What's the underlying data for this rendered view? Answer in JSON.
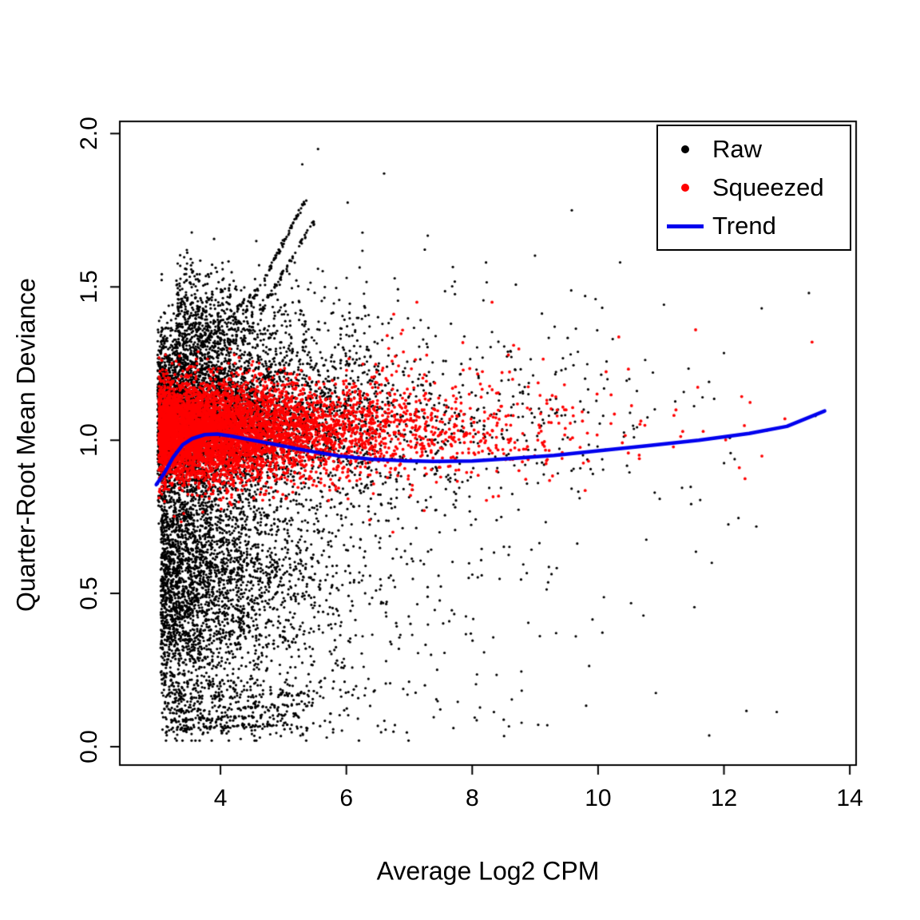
{
  "chart_data": {
    "type": "scatter",
    "title": "",
    "xlabel": "Average Log2 CPM",
    "ylabel": "Quarter-Root Mean Deviance",
    "xlim": [
      2.4,
      14.1
    ],
    "ylim": [
      -0.06,
      2.04
    ],
    "xticks": [
      "4",
      "6",
      "8",
      "10",
      "12",
      "14"
    ],
    "xtick_values": [
      4,
      6,
      8,
      10,
      12,
      14
    ],
    "yticks": [
      "0.0",
      "0.5",
      "1.0",
      "1.5",
      "2.0"
    ],
    "ytick_values": [
      0.0,
      0.5,
      1.0,
      1.5,
      2.0
    ],
    "grid": false,
    "box": true,
    "colors": {
      "raw": "#000000",
      "squeezed": "#FF0000",
      "trend": "#0000EE",
      "axis": "#000000",
      "background": "#FFFFFF"
    },
    "legend": {
      "position": "top-right",
      "entries": [
        {
          "label": "Raw",
          "color": "#000000",
          "type": "point"
        },
        {
          "label": "Squeezed",
          "color": "#FF0000",
          "type": "point"
        },
        {
          "label": "Trend",
          "color": "#0000EE",
          "type": "line"
        }
      ]
    },
    "points": {
      "seed": 42,
      "clusters": [
        {
          "series": "raw",
          "n": 5000,
          "x": {
            "type": "exp",
            "offset": 3.0,
            "mean": 1.25,
            "max": 13.65
          },
          "y": {
            "type": "normal",
            "mean": 1.08,
            "sd": 0.13,
            "min": 0.02,
            "max": 1.99
          }
        },
        {
          "series": "raw",
          "n": 3400,
          "x": {
            "type": "exp",
            "offset": 3.05,
            "mean": 1.0,
            "max": 13.0
          },
          "y": {
            "type": "normal",
            "mean": 0.55,
            "sd": 0.21,
            "min": 0.02,
            "max": 1.99
          }
        },
        {
          "series": "raw",
          "n": 700,
          "x": {
            "type": "exp",
            "offset": 3.3,
            "mean": 0.8,
            "max": 6.5
          },
          "y": {
            "type": "normal",
            "mean": 1.38,
            "sd": 0.1,
            "min": 0.02,
            "max": 1.99
          }
        },
        {
          "series": "raw",
          "n": 260,
          "x": {
            "type": "exp",
            "offset": 3.1,
            "mean": 1.6,
            "max": 13.6
          },
          "y": {
            "type": "uniform",
            "min": 0.03,
            "max": 0.22
          }
        },
        {
          "series": "raw",
          "n": 300,
          "x": {
            "type": "exp",
            "offset": 6.0,
            "mean": 2.2,
            "max": 13.6
          },
          "y": {
            "type": "normal",
            "mean": 1.0,
            "sd": 0.3,
            "min": 0.05,
            "max": 1.75
          }
        },
        {
          "series": "squeezed",
          "n": 6000,
          "x": {
            "type": "exp",
            "offset": 3.02,
            "mean": 1.3,
            "max": 13.45
          },
          "y": {
            "type": "normal",
            "mean": 1.03,
            "sd": 0.08,
            "min": 0.6,
            "max": 1.45
          }
        },
        {
          "series": "squeezed",
          "n": 150,
          "x": {
            "type": "exp",
            "offset": 6.0,
            "mean": 2.0,
            "max": 13.45
          },
          "y": {
            "type": "normal",
            "mean": 1.08,
            "sd": 0.13,
            "min": 0.7,
            "max": 1.45
          }
        }
      ],
      "streaks": [
        {
          "series": "raw",
          "n": 70,
          "from": [
            3.18,
            0.055
          ],
          "to": [
            5.1,
            0.075
          ]
        },
        {
          "series": "raw",
          "n": 60,
          "from": [
            3.18,
            0.085
          ],
          "to": [
            5.3,
            0.105
          ]
        },
        {
          "series": "raw",
          "n": 55,
          "from": [
            3.2,
            0.115
          ],
          "to": [
            5.5,
            0.14
          ]
        },
        {
          "series": "raw",
          "n": 45,
          "from": [
            3.25,
            0.155
          ],
          "to": [
            5.6,
            0.175
          ]
        },
        {
          "series": "raw",
          "n": 90,
          "from": [
            4.1,
            1.3
          ],
          "to": [
            5.35,
            1.78
          ]
        },
        {
          "series": "raw",
          "n": 70,
          "from": [
            4.35,
            1.32
          ],
          "to": [
            5.5,
            1.72
          ]
        },
        {
          "series": "raw",
          "n": 50,
          "from": [
            3.6,
            1.28
          ],
          "to": [
            4.6,
            1.5
          ]
        }
      ],
      "extra_points": [
        {
          "series": "raw",
          "x": 5.55,
          "y": 1.95
        },
        {
          "series": "raw",
          "x": 6.6,
          "y": 1.87
        },
        {
          "series": "raw",
          "x": 5.3,
          "y": 1.9
        },
        {
          "series": "raw",
          "x": 13.35,
          "y": 1.48
        },
        {
          "series": "raw",
          "x": 12.6,
          "y": 1.43
        },
        {
          "series": "raw",
          "x": 10.35,
          "y": 1.58
        },
        {
          "series": "squeezed",
          "x": 13.4,
          "y": 1.32
        },
        {
          "series": "squeezed",
          "x": 11.55,
          "y": 1.36
        }
      ]
    },
    "trend_line": [
      [
        2.98,
        0.855
      ],
      [
        3.1,
        0.89
      ],
      [
        3.25,
        0.945
      ],
      [
        3.4,
        0.985
      ],
      [
        3.55,
        1.005
      ],
      [
        3.75,
        1.018
      ],
      [
        3.95,
        1.02
      ],
      [
        4.2,
        1.012
      ],
      [
        4.5,
        1.0
      ],
      [
        4.9,
        0.985
      ],
      [
        5.4,
        0.965
      ],
      [
        5.9,
        0.948
      ],
      [
        6.4,
        0.938
      ],
      [
        6.9,
        0.933
      ],
      [
        7.4,
        0.931
      ],
      [
        8.0,
        0.932
      ],
      [
        8.6,
        0.94
      ],
      [
        9.3,
        0.95
      ],
      [
        10.0,
        0.965
      ],
      [
        10.8,
        0.982
      ],
      [
        11.6,
        1.0
      ],
      [
        12.4,
        1.022
      ],
      [
        13.0,
        1.045
      ],
      [
        13.6,
        1.095
      ]
    ]
  }
}
